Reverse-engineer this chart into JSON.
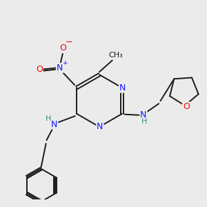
{
  "background_color": "#ebebeb",
  "bond_color": "#1a1a1a",
  "atom_colors": {
    "N": "#1414ff",
    "O": "#ff0000",
    "H": "#2e8b8b",
    "C": "#1a1a1a"
  },
  "figsize": [
    3.0,
    3.0
  ],
  "dpi": 100,
  "lw": 1.4,
  "fontsize": 8.5
}
